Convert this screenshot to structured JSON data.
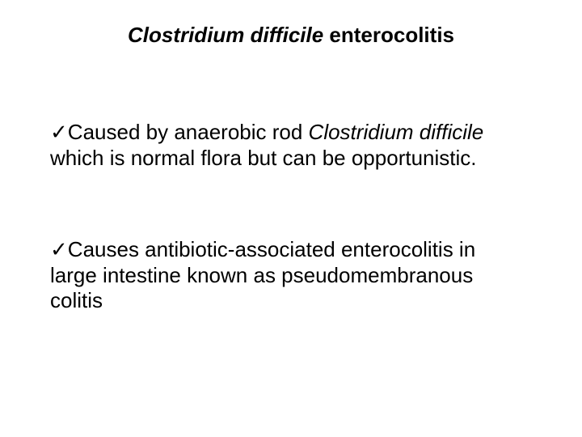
{
  "slide": {
    "title": {
      "italic_part": "Clostridium difficile",
      "regular_part": " enterocolitis"
    },
    "bullets": [
      {
        "check": "✓",
        "lead": "Caused by anaerobic rod ",
        "italic": "Clostridium difficile",
        "line2": "which is normal flora but can be opportunistic."
      },
      {
        "check": "✓",
        "lead": "Causes antibiotic-associated enterocolitis in",
        "line2": "large intestine known as pseudomembranous",
        "line3": "colitis"
      }
    ],
    "colors": {
      "background": "#ffffff",
      "text": "#000000"
    },
    "fonts": {
      "title_size": 26,
      "body_size": 26
    }
  }
}
